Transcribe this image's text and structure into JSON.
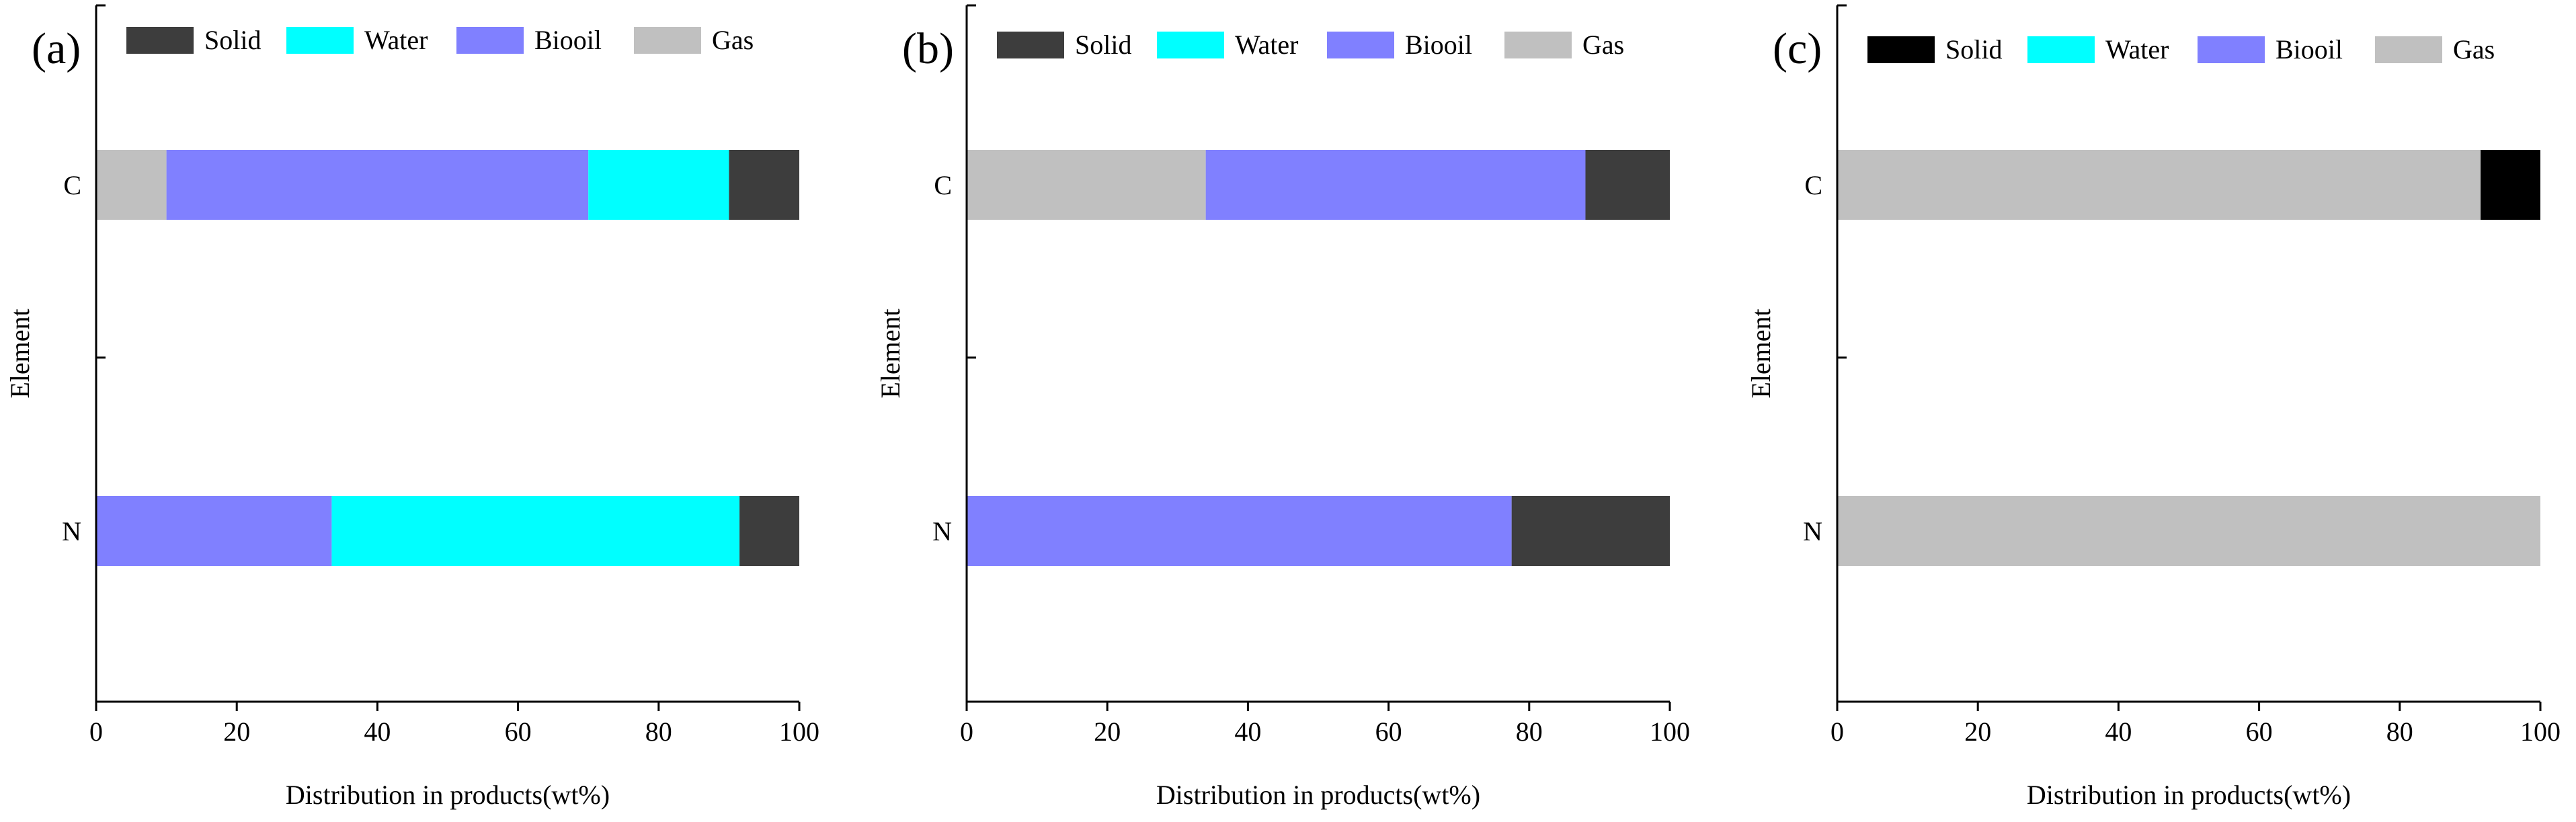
{
  "chart_data": [
    {
      "panel_label": "(a)",
      "type": "stacked-horizontal-bar",
      "xlabel": "Distribution in products(wt%)",
      "ylabel": "Element",
      "xlim": [
        0,
        100
      ],
      "xticks": [
        "0",
        "20",
        "40",
        "60",
        "80",
        "100"
      ],
      "categories": [
        "C",
        "N"
      ],
      "legend": [
        "Solid",
        "Water",
        "Biooil",
        "Gas"
      ],
      "legend_position": "top-left",
      "stack_order": [
        "Gas",
        "Biooil",
        "Water",
        "Solid"
      ],
      "series": [
        {
          "name": "Gas",
          "values": [
            10,
            0
          ]
        },
        {
          "name": "Biooil",
          "values": [
            60,
            33.5
          ]
        },
        {
          "name": "Water",
          "values": [
            20,
            58
          ]
        },
        {
          "name": "Solid",
          "values": [
            10,
            8.5
          ]
        }
      ]
    },
    {
      "panel_label": "(b)",
      "type": "stacked-horizontal-bar",
      "xlabel": "Distribution in products(wt%)",
      "ylabel": "Element",
      "xlim": [
        0,
        100
      ],
      "xticks": [
        "0",
        "20",
        "40",
        "60",
        "80",
        "100"
      ],
      "categories": [
        "C",
        "N"
      ],
      "legend": [
        "Solid",
        "Water",
        "Biooil",
        "Gas"
      ],
      "legend_position": "top-left",
      "stack_order": [
        "Gas",
        "Biooil",
        "Water",
        "Solid"
      ],
      "series": [
        {
          "name": "Gas",
          "values": [
            34,
            0
          ]
        },
        {
          "name": "Biooil",
          "values": [
            54,
            77.5
          ]
        },
        {
          "name": "Water",
          "values": [
            0,
            0
          ]
        },
        {
          "name": "Solid",
          "values": [
            12,
            22.5
          ]
        }
      ]
    },
    {
      "panel_label": "(c)",
      "type": "stacked-horizontal-bar",
      "xlabel": "Distribution in products(wt%)",
      "ylabel": "Element",
      "xlim": [
        0,
        100
      ],
      "xticks": [
        "0",
        "20",
        "40",
        "60",
        "80",
        "100"
      ],
      "categories": [
        "C",
        "N"
      ],
      "legend": [
        "Solid",
        "Water",
        "Biooil",
        "Gas"
      ],
      "legend_position": "top-left",
      "stack_order": [
        "Gas",
        "Biooil",
        "Water",
        "Solid"
      ],
      "series": [
        {
          "name": "Gas",
          "values": [
            91.5,
            100
          ]
        },
        {
          "name": "Biooil",
          "values": [
            0,
            0
          ]
        },
        {
          "name": "Water",
          "values": [
            0,
            0
          ]
        },
        {
          "name": "Solid",
          "values": [
            8.5,
            0
          ]
        }
      ]
    }
  ],
  "colors": {
    "Solid_a": "#3d3d3d",
    "Solid_b": "#3d3d3d",
    "Solid_c": "#000000",
    "Water": "#00ffff",
    "Biooil": "#8080ff",
    "Gas": "#c0c0c0"
  }
}
